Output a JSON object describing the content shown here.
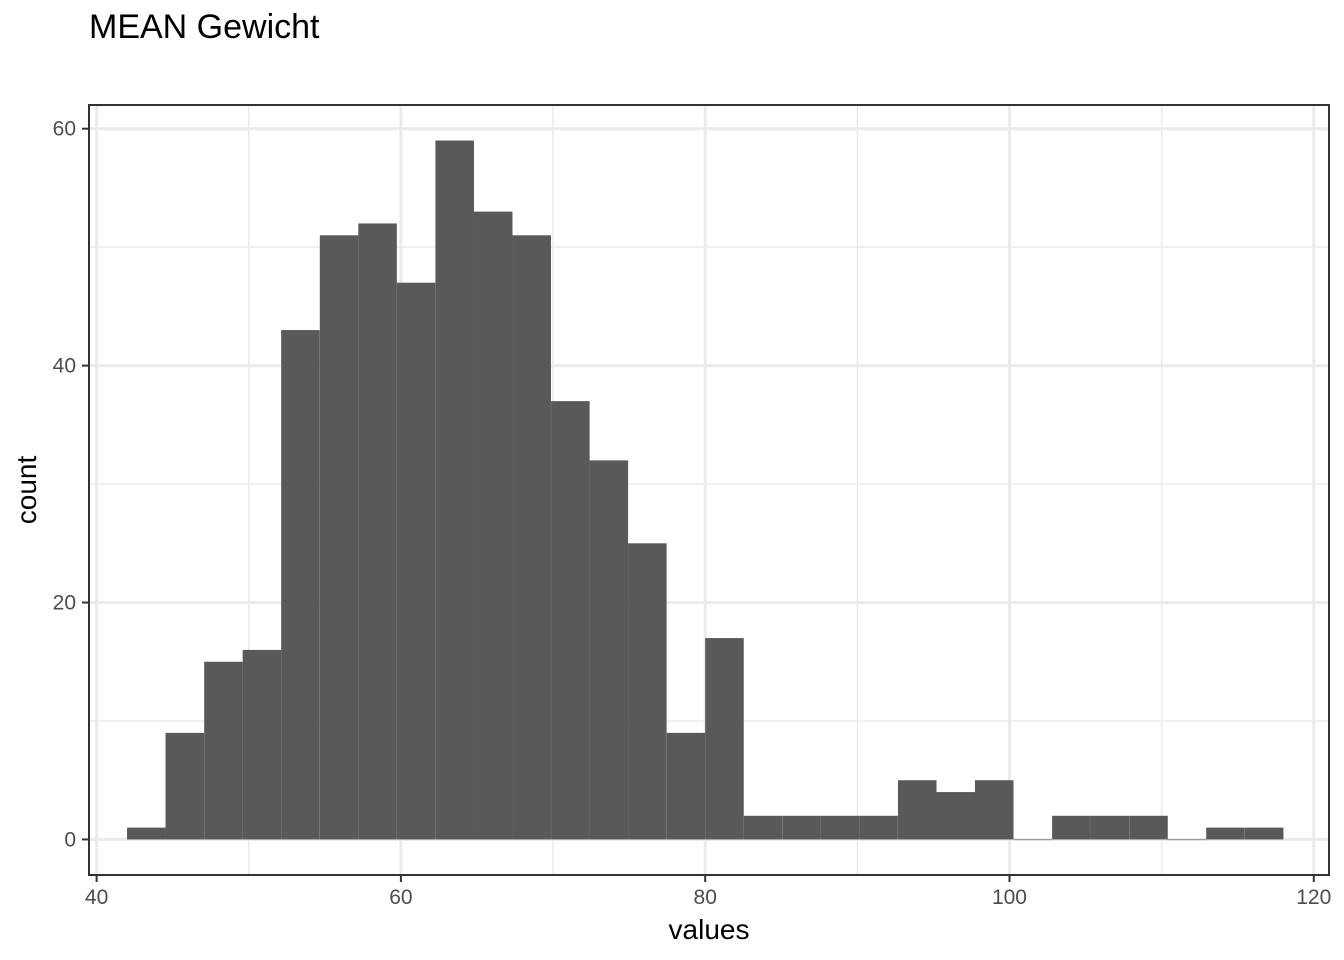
{
  "chart_data": {
    "type": "bar",
    "title": "MEAN Gewicht",
    "xlabel": "values",
    "ylabel": "count",
    "xlim": [
      39.5,
      121
    ],
    "ylim": [
      -3,
      62
    ],
    "xticks": [
      40,
      60,
      80,
      100,
      120
    ],
    "yticks": [
      0,
      20,
      40,
      60
    ],
    "grid": true,
    "bar_color": "#595959",
    "bin_width": 2.5333,
    "bins": [
      {
        "start": 42.0,
        "count": 1
      },
      {
        "start": 44.53,
        "count": 9
      },
      {
        "start": 47.07,
        "count": 15
      },
      {
        "start": 49.6,
        "count": 16
      },
      {
        "start": 52.13,
        "count": 43
      },
      {
        "start": 54.67,
        "count": 51
      },
      {
        "start": 57.2,
        "count": 52
      },
      {
        "start": 59.73,
        "count": 47
      },
      {
        "start": 62.27,
        "count": 59
      },
      {
        "start": 64.8,
        "count": 53
      },
      {
        "start": 67.33,
        "count": 51
      },
      {
        "start": 69.87,
        "count": 37
      },
      {
        "start": 72.4,
        "count": 32
      },
      {
        "start": 74.93,
        "count": 25
      },
      {
        "start": 77.47,
        "count": 9
      },
      {
        "start": 80.0,
        "count": 17
      },
      {
        "start": 82.53,
        "count": 2
      },
      {
        "start": 85.07,
        "count": 2
      },
      {
        "start": 87.6,
        "count": 2
      },
      {
        "start": 90.13,
        "count": 2
      },
      {
        "start": 92.67,
        "count": 5
      },
      {
        "start": 95.2,
        "count": 4
      },
      {
        "start": 97.73,
        "count": 5
      },
      {
        "start": 100.27,
        "count": 0
      },
      {
        "start": 102.8,
        "count": 2
      },
      {
        "start": 105.33,
        "count": 2
      },
      {
        "start": 107.87,
        "count": 2
      },
      {
        "start": 110.4,
        "count": 0
      },
      {
        "start": 112.93,
        "count": 1
      },
      {
        "start": 115.47,
        "count": 1
      }
    ]
  }
}
